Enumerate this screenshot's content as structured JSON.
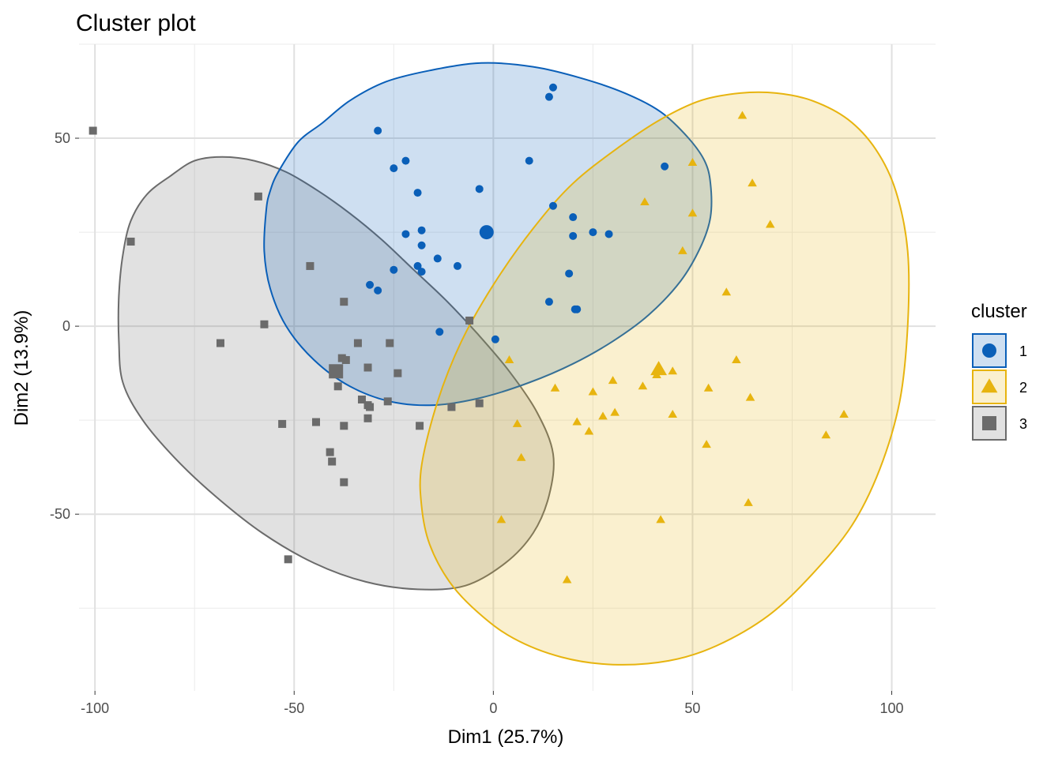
{
  "chart_data": {
    "type": "scatter",
    "title": "Cluster plot",
    "xlabel": "Dim1 (25.7%)",
    "ylabel": "Dim2 (13.9%)",
    "xlim": [
      -104,
      111
    ],
    "ylim": [
      -97,
      75
    ],
    "x_ticks": [
      -100,
      -50,
      0,
      50,
      100
    ],
    "x_tick_labels": [
      "-100",
      "-50",
      "0",
      "50",
      "100"
    ],
    "y_ticks": [
      -50,
      0,
      50
    ],
    "y_tick_labels": [
      "-50",
      "0",
      "50"
    ],
    "grid": true,
    "legend": {
      "title": "cluster",
      "position": "right"
    },
    "series": [
      {
        "name": "1",
        "shape": "circle",
        "color": "#0a5fb8",
        "fill": "#0a5fb8",
        "centroid": [
          -1.7,
          25
        ],
        "ellipse_outline": [
          [
            -57,
            31
          ],
          [
            -56,
            36
          ],
          [
            -54,
            41
          ],
          [
            -49,
            49
          ],
          [
            -43,
            54
          ],
          [
            -36,
            60
          ],
          [
            -27,
            65
          ],
          [
            -16,
            68
          ],
          [
            -3,
            70
          ],
          [
            10,
            69
          ],
          [
            22,
            66
          ],
          [
            33,
            62
          ],
          [
            42,
            57
          ],
          [
            49,
            50
          ],
          [
            53,
            44
          ],
          [
            54.5,
            38
          ],
          [
            54.5,
            29
          ],
          [
            52,
            21
          ],
          [
            47,
            12
          ],
          [
            39,
            3
          ],
          [
            30,
            -4
          ],
          [
            20,
            -10
          ],
          [
            9,
            -15
          ],
          [
            -3,
            -19
          ],
          [
            -15,
            -21
          ],
          [
            -26,
            -20
          ],
          [
            -36,
            -16
          ],
          [
            -45,
            -9
          ],
          [
            -52,
            0
          ],
          [
            -56,
            10
          ],
          [
            -57.5,
            20
          ],
          [
            -57,
            31
          ]
        ],
        "points": [
          [
            14,
            61
          ],
          [
            15,
            63.5
          ],
          [
            -29,
            52
          ],
          [
            -22,
            44
          ],
          [
            -25,
            42
          ],
          [
            9,
            44
          ],
          [
            43,
            42.5
          ],
          [
            -3.5,
            36.5
          ],
          [
            -19,
            35.5
          ],
          [
            15,
            32
          ],
          [
            20,
            29
          ],
          [
            -18,
            25.5
          ],
          [
            -22,
            24.5
          ],
          [
            20,
            24
          ],
          [
            25,
            25
          ],
          [
            29,
            24.5
          ],
          [
            -18,
            21.5
          ],
          [
            -14,
            18
          ],
          [
            -19,
            16
          ],
          [
            -25,
            15
          ],
          [
            -9,
            16
          ],
          [
            -18,
            14.5
          ],
          [
            19,
            14
          ],
          [
            -31,
            11
          ],
          [
            -29,
            9.5
          ],
          [
            14,
            6.5
          ],
          [
            20.5,
            4.5
          ],
          [
            21,
            4.5
          ],
          [
            -13.5,
            -1.5
          ],
          [
            0.5,
            -3.5
          ]
        ]
      },
      {
        "name": "2",
        "shape": "triangle",
        "color": "#e7b40f",
        "fill": "#e7b40f",
        "centroid": [
          41.5,
          -11.5
        ],
        "ellipse_outline": [
          [
            -18,
            -37
          ],
          [
            -18,
            -48
          ],
          [
            -16,
            -58
          ],
          [
            -11,
            -68
          ],
          [
            -4,
            -76
          ],
          [
            5,
            -83
          ],
          [
            17,
            -88
          ],
          [
            30,
            -90
          ],
          [
            44,
            -89
          ],
          [
            56,
            -85
          ],
          [
            69,
            -77
          ],
          [
            80,
            -66
          ],
          [
            90,
            -53
          ],
          [
            97,
            -38
          ],
          [
            102,
            -20
          ],
          [
            104,
            0
          ],
          [
            104,
            20
          ],
          [
            101,
            36
          ],
          [
            96,
            47
          ],
          [
            89,
            55
          ],
          [
            80,
            60
          ],
          [
            71,
            62
          ],
          [
            62,
            62
          ],
          [
            52,
            60
          ],
          [
            42,
            55
          ],
          [
            32,
            48
          ],
          [
            20,
            38
          ],
          [
            10,
            26
          ],
          [
            0,
            11
          ],
          [
            -8,
            -4
          ],
          [
            -14,
            -20
          ],
          [
            -18,
            -37
          ]
        ],
        "points": [
          [
            62.5,
            56
          ],
          [
            50,
            43.5
          ],
          [
            65,
            38
          ],
          [
            38,
            33
          ],
          [
            50,
            30
          ],
          [
            69.5,
            27
          ],
          [
            47.5,
            20
          ],
          [
            58.5,
            9
          ],
          [
            61,
            -9
          ],
          [
            4,
            -9
          ],
          [
            45,
            -12
          ],
          [
            41,
            -13
          ],
          [
            30,
            -14.5
          ],
          [
            37.5,
            -16
          ],
          [
            15.5,
            -16.5
          ],
          [
            54,
            -16.5
          ],
          [
            25,
            -17.5
          ],
          [
            64.5,
            -19
          ],
          [
            45,
            -23.5
          ],
          [
            30.5,
            -23
          ],
          [
            27.5,
            -24
          ],
          [
            88,
            -23.5
          ],
          [
            6,
            -26
          ],
          [
            21,
            -25.5
          ],
          [
            24,
            -28
          ],
          [
            83.5,
            -29
          ],
          [
            53.5,
            -31.5
          ],
          [
            7,
            -35
          ],
          [
            64,
            -47
          ],
          [
            2,
            -51.5
          ],
          [
            42,
            -51.5
          ],
          [
            18.5,
            -67.5
          ]
        ]
      },
      {
        "name": "3",
        "shape": "square",
        "color": "#6b6b6b",
        "fill": "#6b6b6b",
        "centroid": [
          -39.5,
          -12
        ],
        "ellipse_outline": [
          [
            -93,
            -15
          ],
          [
            -94,
            -4
          ],
          [
            -94,
            8
          ],
          [
            -93,
            19
          ],
          [
            -91,
            28
          ],
          [
            -87,
            35
          ],
          [
            -81,
            40
          ],
          [
            -75,
            44
          ],
          [
            -68,
            45
          ],
          [
            -60,
            44
          ],
          [
            -52,
            41
          ],
          [
            -44,
            36
          ],
          [
            -36,
            30
          ],
          [
            -28,
            23
          ],
          [
            -20,
            15
          ],
          [
            -12,
            7
          ],
          [
            -4,
            -2
          ],
          [
            4,
            -12
          ],
          [
            11,
            -23
          ],
          [
            15,
            -34
          ],
          [
            14,
            -45
          ],
          [
            10,
            -55
          ],
          [
            3,
            -63
          ],
          [
            -7,
            -69
          ],
          [
            -19,
            -70
          ],
          [
            -32,
            -68
          ],
          [
            -45,
            -63
          ],
          [
            -58,
            -55
          ],
          [
            -70,
            -45
          ],
          [
            -80,
            -35
          ],
          [
            -88,
            -25
          ],
          [
            -93,
            -15
          ]
        ],
        "points": [
          [
            -100.5,
            52
          ],
          [
            -91,
            22.5
          ],
          [
            -59,
            34.5
          ],
          [
            -46,
            16
          ],
          [
            -37.5,
            6.5
          ],
          [
            -6,
            1.5
          ],
          [
            -57.5,
            0.5
          ],
          [
            -68.5,
            -4.5
          ],
          [
            -34,
            -4.5
          ],
          [
            -26,
            -4.5
          ],
          [
            -38,
            -8.5
          ],
          [
            -37,
            -9
          ],
          [
            -31.5,
            -11
          ],
          [
            -24,
            -12.5
          ],
          [
            -39,
            -16
          ],
          [
            -33,
            -19.5
          ],
          [
            -31.5,
            -21
          ],
          [
            -31,
            -21.5
          ],
          [
            -26.5,
            -20
          ],
          [
            -10.5,
            -21.5
          ],
          [
            -3.5,
            -20.5
          ],
          [
            -31.5,
            -24.5
          ],
          [
            -53,
            -26
          ],
          [
            -44.5,
            -25.5
          ],
          [
            -37.5,
            -26.5
          ],
          [
            -18.5,
            -26.5
          ],
          [
            -41,
            -33.5
          ],
          [
            -40.5,
            -36
          ],
          [
            -37.5,
            -41.5
          ],
          [
            -51.5,
            -62
          ]
        ]
      }
    ]
  }
}
